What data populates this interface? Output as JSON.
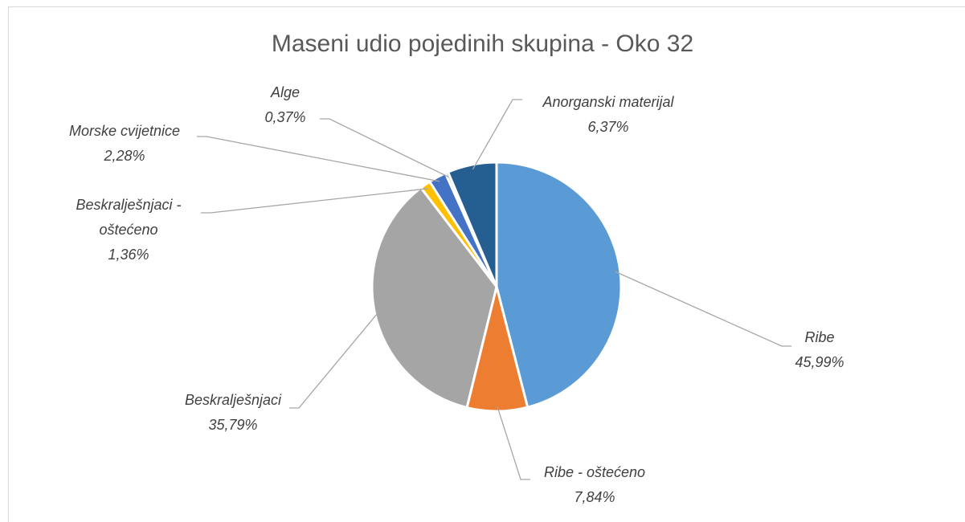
{
  "chart_data": {
    "type": "pie",
    "title": "Maseni udio pojedinih skupina - Oko 32",
    "categories": [
      "Ribe",
      "Ribe - oštećeno",
      "Beskralješnjaci",
      "Beskralješnjaci - oštećeno",
      "Morske cvijetnice",
      "Alge",
      "Anorganski materijal"
    ],
    "values": [
      45.99,
      7.84,
      35.79,
      1.36,
      2.28,
      0.37,
      6.37
    ],
    "value_labels": [
      "45,99%",
      "7,84%",
      "35,79%",
      "1,36%",
      "2,28%",
      "0,37%",
      "6,37%"
    ],
    "colors": [
      "#5b9bd5",
      "#ed7d31",
      "#a5a5a5",
      "#ffc000",
      "#4472c4",
      "#70ad47",
      "#255e91"
    ]
  }
}
